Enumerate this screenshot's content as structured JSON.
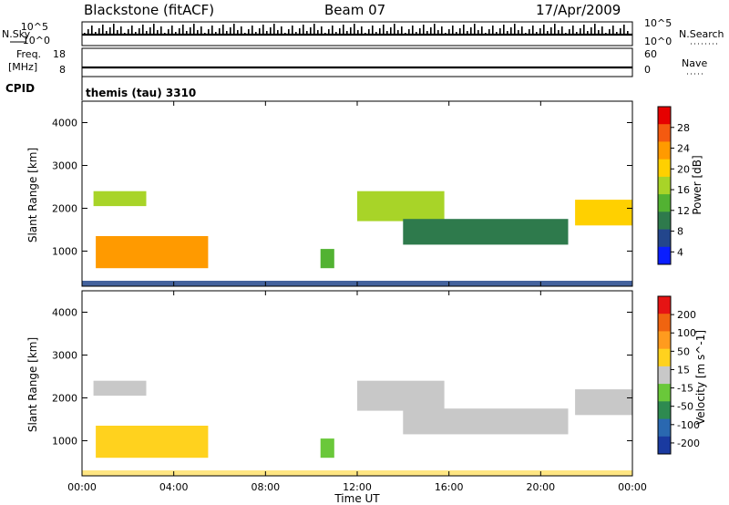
{
  "header": {
    "station": "Blackstone (fitACF)",
    "beam": "Beam 07",
    "date": "17/Apr/2009"
  },
  "top_panels": {
    "nsky_label": "N.Sky",
    "nsky_ticks": [
      "10^5",
      "10^0"
    ],
    "nsearch_label": "N.Search",
    "nsearch_ticks": [
      "10^5",
      "10^0"
    ],
    "freq_label": "Freq.",
    "freq_unit": "[MHz]",
    "freq_ticks": [
      "18",
      "8"
    ],
    "nave_label": "Nave",
    "nave_ticks": [
      "60",
      "0"
    ],
    "cpid_label": "CPID",
    "cpid_value": "themis (tau) 3310"
  },
  "colors": {
    "power_scale": [
      "#0a1eff",
      "#23468c",
      "#2e7a4c",
      "#52b232",
      "#a8d428",
      "#ffd000",
      "#ff9a00",
      "#f45a10",
      "#e60000"
    ],
    "velocity_scale": [
      "#1a3aa0",
      "#2a68b0",
      "#2e8a50",
      "#6ac83a",
      "#c8c8c8",
      "#ffd21e",
      "#ff9b1e",
      "#f06410",
      "#e61414"
    ]
  },
  "chart_data": [
    {
      "type": "heatmap",
      "name": "power",
      "ylabel": "Slant Range [km]",
      "xlabel": "Time UT",
      "x_ticks": [
        "00:00",
        "04:00",
        "08:00",
        "12:00",
        "16:00",
        "20:00",
        "00:00"
      ],
      "y_ticks": [
        1000,
        2000,
        3000,
        4000
      ],
      "xlim_hours": [
        0,
        24
      ],
      "ylim_km": [
        180,
        4500
      ],
      "colorbar_label": "Power [dB]",
      "colorbar_ticks": [
        "28",
        "24",
        "20",
        "16",
        "12",
        "8",
        "4"
      ],
      "regions": [
        {
          "t0": 0.5,
          "t1": 2.8,
          "r0": 2050,
          "r1": 2400,
          "level": 4
        },
        {
          "t0": 0.6,
          "t1": 5.5,
          "r0": 600,
          "r1": 1350,
          "level": 6
        },
        {
          "t0": 10.4,
          "t1": 11.0,
          "r0": 600,
          "r1": 1050,
          "level": 3
        },
        {
          "t0": 12.0,
          "t1": 15.8,
          "r0": 1700,
          "r1": 2400,
          "level": 4
        },
        {
          "t0": 14.0,
          "t1": 21.2,
          "r0": 1150,
          "r1": 1750,
          "level": 2
        },
        {
          "t0": 21.5,
          "t1": 24.0,
          "r0": 1600,
          "r1": 2200,
          "level": 5
        }
      ]
    },
    {
      "type": "heatmap",
      "name": "velocity",
      "ylabel": "Slant Range [km]",
      "xlabel": "Time UT",
      "x_ticks": [
        "00:00",
        "04:00",
        "08:00",
        "12:00",
        "16:00",
        "20:00",
        "00:00"
      ],
      "y_ticks": [
        1000,
        2000,
        3000,
        4000
      ],
      "xlim_hours": [
        0,
        24
      ],
      "ylim_km": [
        180,
        4500
      ],
      "colorbar_label": "Velocity [m s^-1]",
      "colorbar_ticks": [
        "200",
        "100",
        "50",
        "15",
        "-15",
        "-50",
        "-100",
        "-200"
      ],
      "regions": [
        {
          "t0": 0.5,
          "t1": 2.8,
          "r0": 2050,
          "r1": 2400,
          "level": 4
        },
        {
          "t0": 0.6,
          "t1": 5.5,
          "r0": 600,
          "r1": 1350,
          "level": 5
        },
        {
          "t0": 10.4,
          "t1": 11.0,
          "r0": 600,
          "r1": 1050,
          "level": 3
        },
        {
          "t0": 12.0,
          "t1": 15.8,
          "r0": 1700,
          "r1": 2400,
          "level": 4
        },
        {
          "t0": 14.0,
          "t1": 21.2,
          "r0": 1150,
          "r1": 1750,
          "level": 4
        },
        {
          "t0": 21.5,
          "t1": 24.0,
          "r0": 1600,
          "r1": 2200,
          "level": 4
        }
      ]
    }
  ]
}
